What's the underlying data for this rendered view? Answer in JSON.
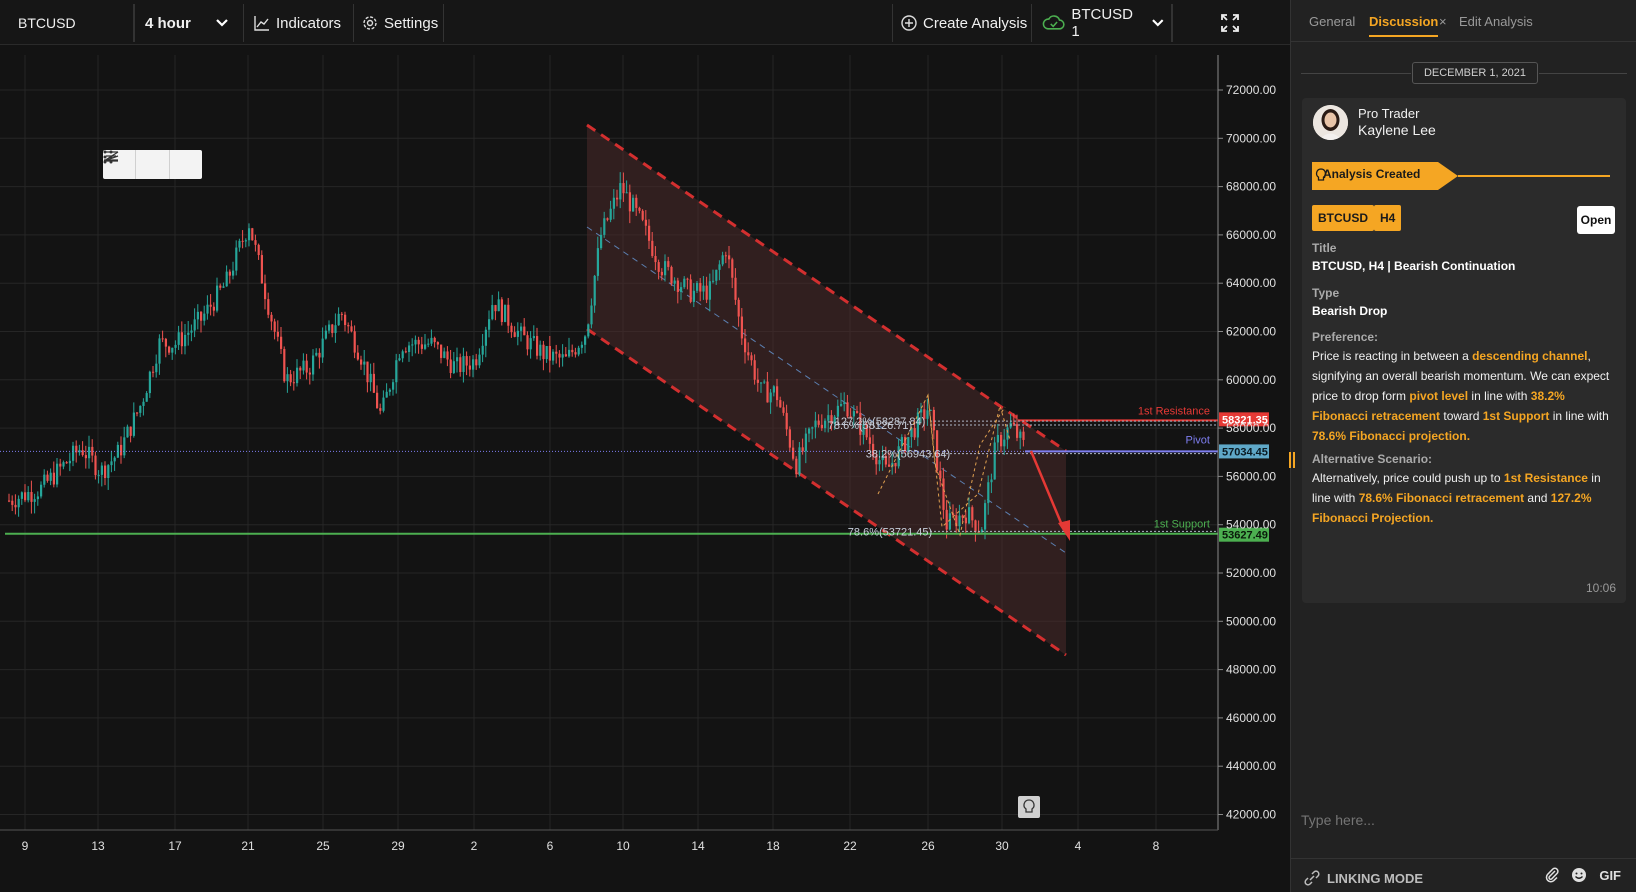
{
  "toolbar": {
    "symbol": "BTCUSD",
    "interval": "4 hour",
    "indicators_label": "Indicators",
    "settings_label": "Settings",
    "create_analysis_label": "Create Analysis",
    "ticker_label": "BTCUSD 1"
  },
  "chart": {
    "y_labels": [
      "72000.00",
      "70000.00",
      "68000.00",
      "66000.00",
      "64000.00",
      "62000.00",
      "60000.00",
      "58000.00",
      "56000.00",
      "54000.00",
      "52000.00",
      "50000.00",
      "48000.00",
      "46000.00",
      "44000.00",
      "42000.00"
    ],
    "x_labels": [
      "9",
      "13",
      "17",
      "21",
      "25",
      "29",
      "2",
      "6",
      "10",
      "14",
      "18",
      "22",
      "26",
      "30",
      "4",
      "8"
    ],
    "resistance_label": "1st Resistance",
    "resistance_price": "58321.35",
    "pivot_label": "Pivot",
    "pivot_price": "57034.45",
    "support_label": "1st Support",
    "support_price": "53627.49",
    "fib_127": "127.2%(58287.84)",
    "fib_786_top": "78.6%(58126.71)",
    "fib_382": "38.2%(56943.64)",
    "fib_786_bottom": "78.6%(53721.45)",
    "colors": {
      "up": "#26a69a",
      "down": "#ef5350",
      "resistance": "#e53935",
      "pivot": "#7e7ef0",
      "support": "#4caf50"
    }
  },
  "sidebar": {
    "tabs": {
      "general": "General",
      "discussion": "Discussion",
      "close": "×",
      "edit": "Edit Analysis"
    },
    "date": "DECEMBER 1, 2021",
    "author_role": "Pro Trader",
    "author_name": "Kaylene Lee",
    "banner": "Analysis Created",
    "tag_symbol": "BTCUSD",
    "tag_tf": "H4",
    "open_label": "Open",
    "title_label": "Title",
    "title_value": "BTCUSD, H4 | Bearish Continuation",
    "type_label": "Type",
    "type_value": "Bearish Drop",
    "preference_label": "Preference:",
    "pref": {
      "t1": "Price is reacting in between a ",
      "h1": "descending channel",
      "t2": ", signifying an overall bearish momentum. We can expect price to drop form ",
      "h2": "pivot level",
      "t3": " in line with ",
      "h3": "38.2% Fibonacci retracement",
      "t4": " toward ",
      "h4": "1st Support",
      "t5": " in line with ",
      "h5": "78.6% Fibonacci projection."
    },
    "alt_label": "Alternative Scenario:",
    "alt": {
      "t1": "Alternatively, price could push up to ",
      "h1": "1st Resistance",
      "t2": " in line with ",
      "h2": "78.6% Fibonacci retracement",
      "t3": " and ",
      "h3": "127.2% Fibonacci Projection."
    },
    "time": "10:06",
    "input_placeholder": "Type here...",
    "linking_mode": "LINKING MODE",
    "gif": "GIF"
  }
}
